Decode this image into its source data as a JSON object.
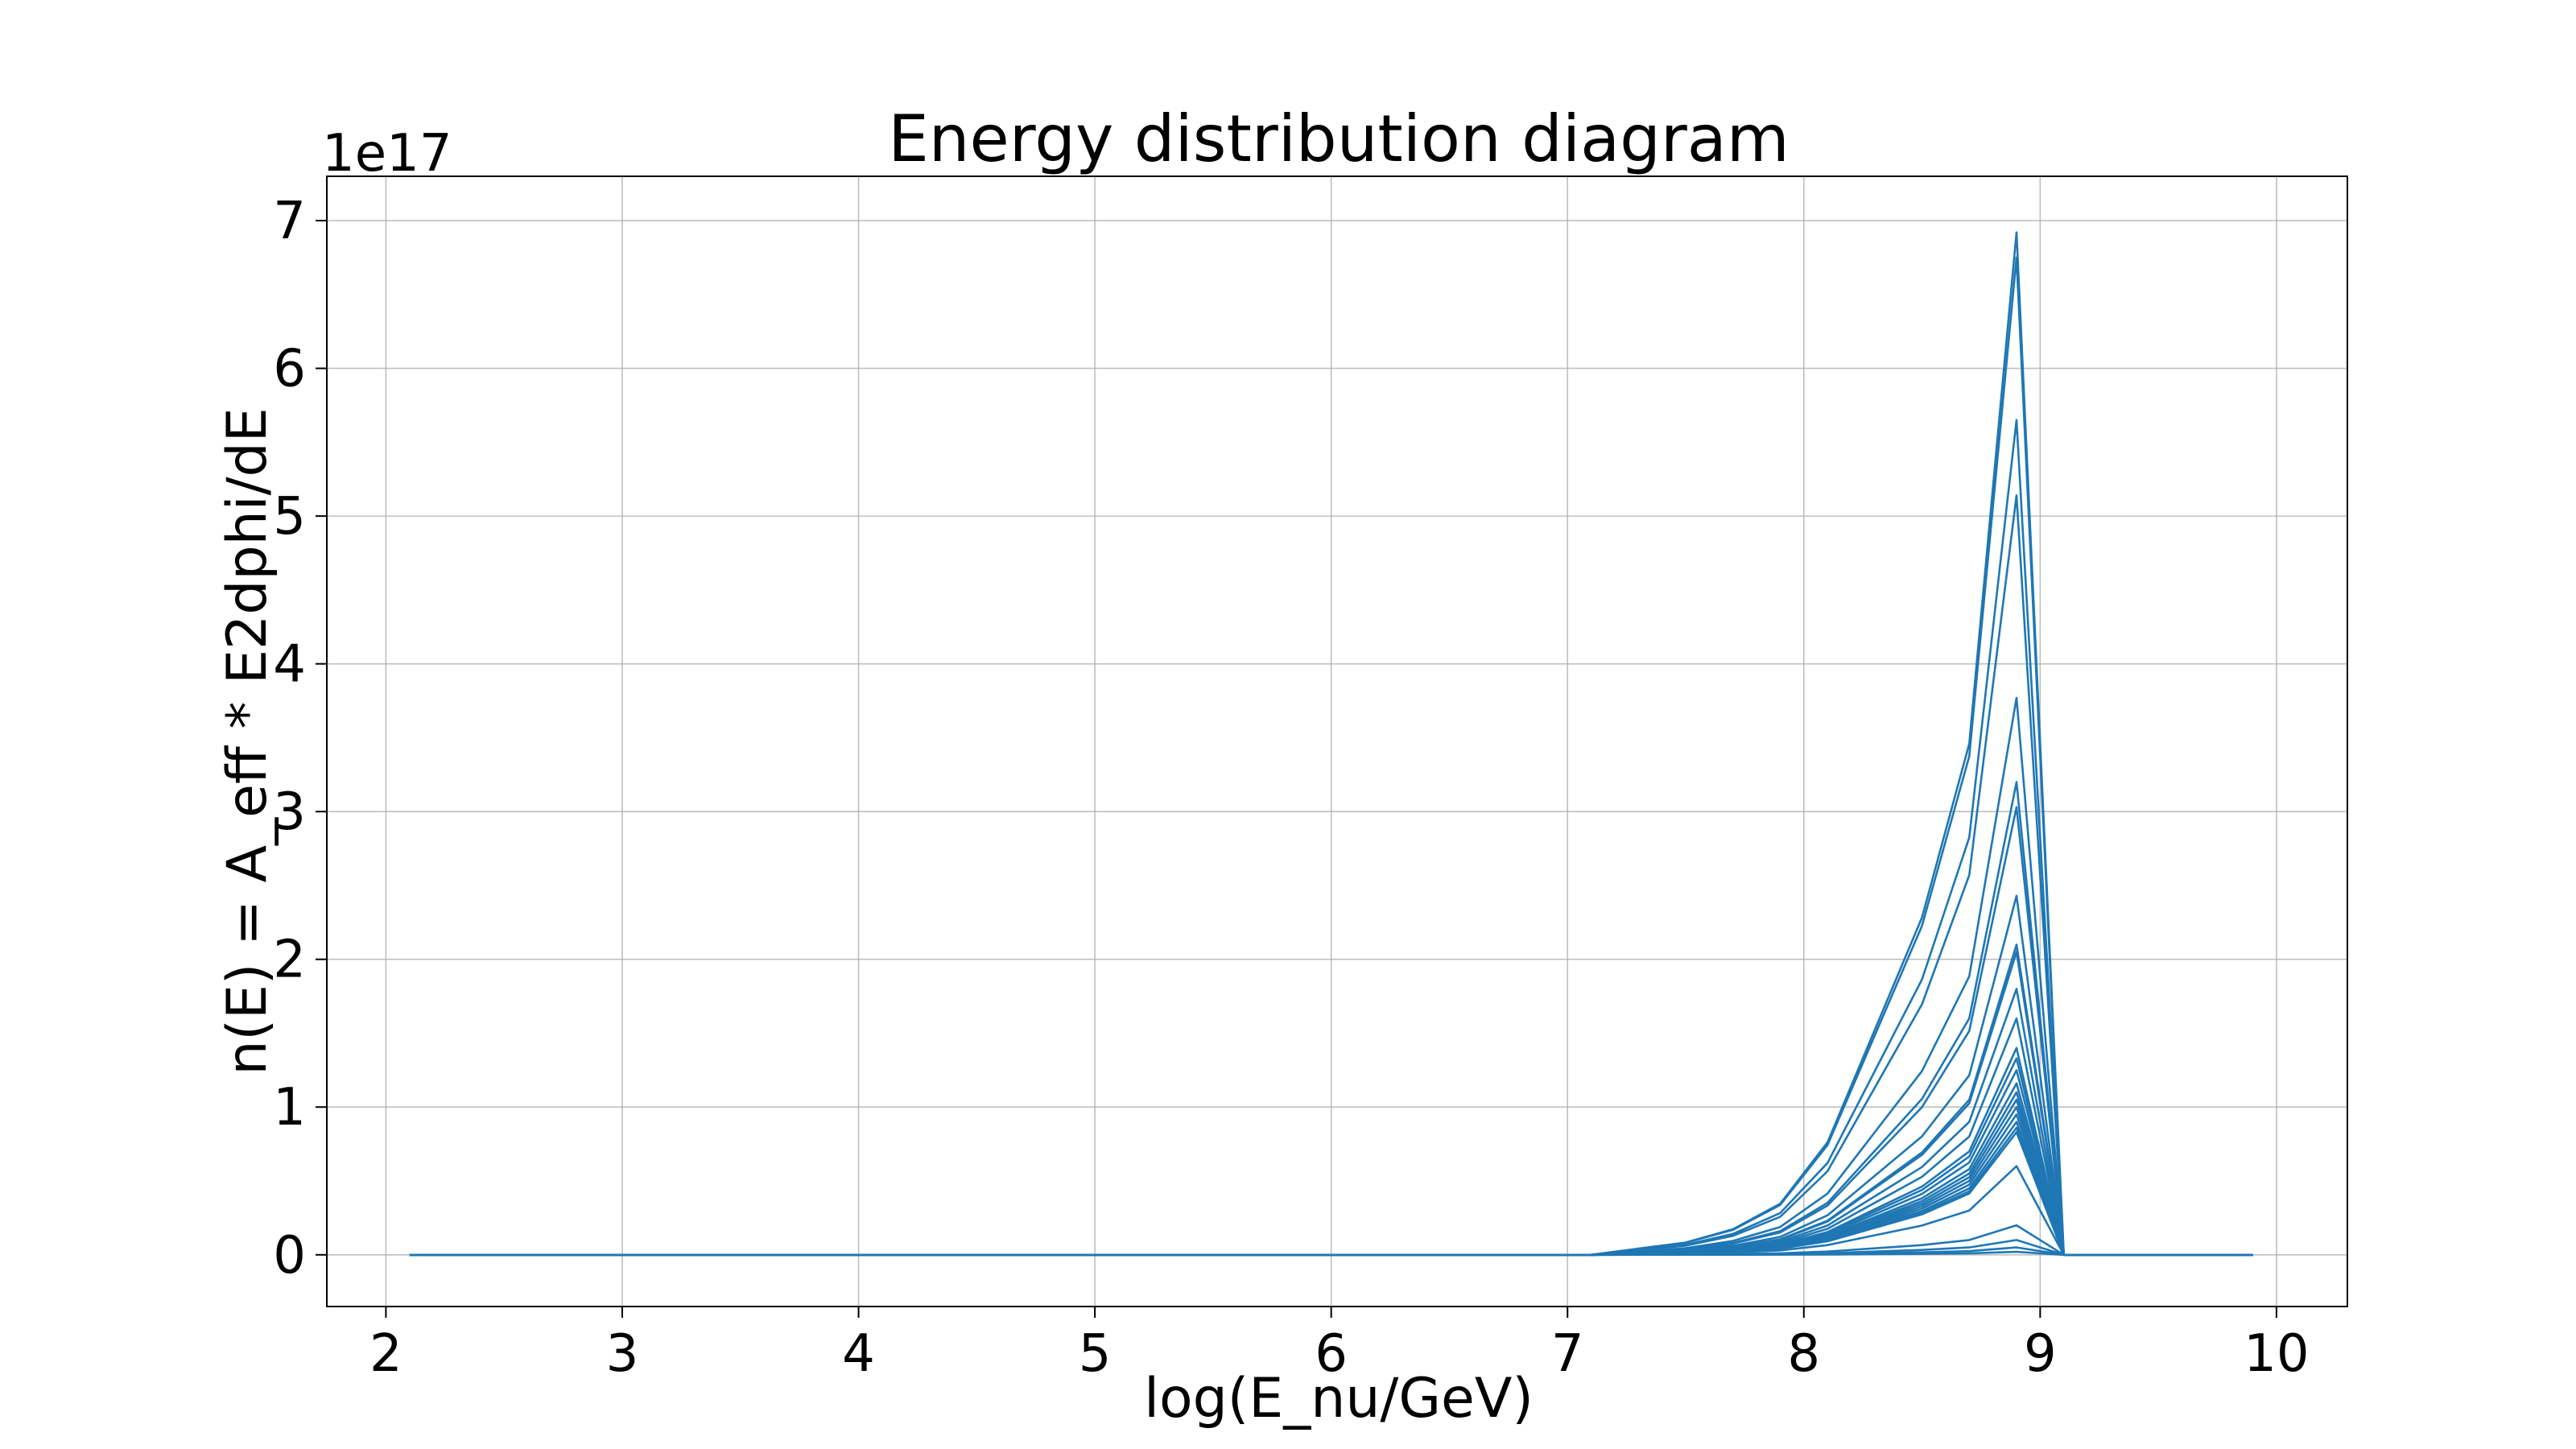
{
  "chart_data": {
    "type": "line",
    "title": "Energy distribution diagram",
    "xlabel": "log(E_nu/GeV)",
    "ylabel": "n(E) = A_eff * E2dphi/dE",
    "y_offset_label": "1e17",
    "xlim": [
      1.75,
      10.3
    ],
    "ylim": [
      -0.35,
      7.3
    ],
    "xticks": [
      2,
      3,
      4,
      5,
      6,
      7,
      8,
      9,
      10
    ],
    "yticks": [
      0,
      1,
      2,
      3,
      4,
      5,
      6,
      7
    ],
    "grid": true,
    "color": "#1f77b4",
    "x": [
      2.1,
      2.3,
      2.5,
      2.7,
      2.9,
      3.1,
      3.3,
      3.5,
      3.7,
      3.9,
      4.1,
      4.3,
      4.5,
      4.7,
      4.9,
      5.1,
      5.3,
      5.5,
      5.7,
      5.9,
      6.1,
      6.3,
      6.5,
      6.7,
      6.9,
      7.1,
      7.3,
      7.5,
      7.7,
      7.9,
      8.1,
      8.3,
      8.5,
      8.7,
      8.9,
      9.1,
      9.3,
      9.5,
      9.7,
      9.9
    ],
    "series_peaks": [
      6.92,
      6.75,
      5.65,
      5.14,
      3.77,
      3.2,
      3.03,
      2.43,
      2.1,
      2.05,
      1.8,
      1.6,
      1.4,
      1.33,
      1.25,
      1.16,
      1.1,
      1.05,
      1.0,
      0.95,
      0.9,
      0.86,
      0.83,
      0.6,
      0.2,
      0.1,
      0.05,
      0.02
    ],
    "shape_ratios": [
      0.006,
      0.012,
      0.025,
      0.05,
      0.11,
      0.22,
      0.33,
      0.5,
      1.0,
      0.0
    ]
  }
}
